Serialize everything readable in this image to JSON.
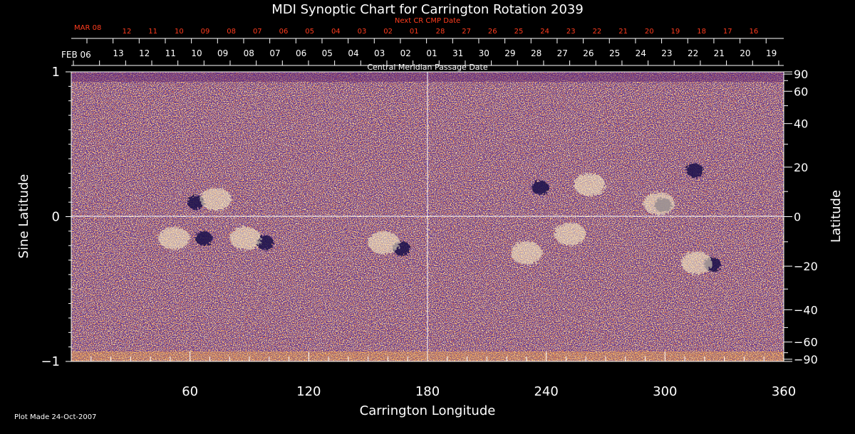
{
  "chart_data": {
    "type": "heatmap",
    "title": "MDI Synoptic Chart for Carrington Rotation 2039",
    "xlabel": "Carrington Longitude",
    "ylabel_left": "Sine Latitude",
    "ylabel_right": "Latitude",
    "xlim": [
      0,
      360
    ],
    "ylim": [
      -1,
      1
    ],
    "x_ticks": [
      "60",
      "120",
      "180",
      "240",
      "300",
      "360"
    ],
    "x_tick_values": [
      60,
      120,
      180,
      240,
      300,
      360
    ],
    "y_left_ticks": [
      "1",
      "0",
      "−1"
    ],
    "y_left_tick_values": [
      1,
      0,
      -1
    ],
    "y_right_ticks": [
      "90",
      "60",
      "40",
      "20",
      "0",
      "−20",
      "−40",
      "−60",
      "−90"
    ],
    "y_right_tick_values": [
      90,
      60,
      40,
      20,
      0,
      -20,
      -40,
      -60,
      -90
    ],
    "top_axis_label": "Central Meridian Passage Date",
    "top_axis_start_label": "FEB 06",
    "top_axis_dates": [
      "13",
      "12",
      "11",
      "10",
      "09",
      "08",
      "07",
      "06",
      "05",
      "04",
      "03",
      "02",
      "01",
      "31",
      "30",
      "29",
      "28",
      "27",
      "26",
      "25",
      "24",
      "23",
      "22",
      "21",
      "20",
      "19"
    ],
    "next_cr_label": "Next CR CMP Date",
    "next_cr_start_label": "MAR 08",
    "next_cr_dates": [
      "12",
      "11",
      "10",
      "09",
      "08",
      "07",
      "06",
      "05",
      "04",
      "03",
      "02",
      "01",
      "28",
      "27",
      "26",
      "25",
      "24",
      "23",
      "22",
      "21",
      "20",
      "19",
      "18",
      "17",
      "16"
    ],
    "footer_note": "Plot Made 24-Oct-2007",
    "colors": {
      "background": "#000000",
      "map_base": "#ff4a10",
      "positive_polarity": "#fff6c8",
      "negative_polarity": "#1a0a4a",
      "red_text": "#ff3c1e",
      "axis": "#ffffff"
    },
    "features": [
      {
        "polarity": "negative",
        "lon": 63,
        "sinlat": 0.1
      },
      {
        "polarity": "positive",
        "lon": 73,
        "sinlat": 0.12
      },
      {
        "polarity": "negative",
        "lon": 67,
        "sinlat": -0.15
      },
      {
        "polarity": "positive",
        "lon": 52,
        "sinlat": -0.15
      },
      {
        "polarity": "negative",
        "lon": 98,
        "sinlat": -0.18
      },
      {
        "polarity": "positive",
        "lon": 88,
        "sinlat": -0.15
      },
      {
        "polarity": "negative",
        "lon": 167,
        "sinlat": -0.22
      },
      {
        "polarity": "positive",
        "lon": 158,
        "sinlat": -0.18
      },
      {
        "polarity": "positive",
        "lon": 230,
        "sinlat": -0.25
      },
      {
        "polarity": "positive",
        "lon": 252,
        "sinlat": -0.12
      },
      {
        "polarity": "negative",
        "lon": 237,
        "sinlat": 0.2
      },
      {
        "polarity": "positive",
        "lon": 262,
        "sinlat": 0.22
      },
      {
        "polarity": "negative",
        "lon": 315,
        "sinlat": 0.32
      },
      {
        "polarity": "negative",
        "lon": 324,
        "sinlat": -0.33
      },
      {
        "polarity": "positive",
        "lon": 316,
        "sinlat": -0.32
      },
      {
        "polarity": "negative",
        "lon": 299,
        "sinlat": 0.08
      },
      {
        "polarity": "positive",
        "lon": 297,
        "sinlat": 0.09
      }
    ]
  }
}
